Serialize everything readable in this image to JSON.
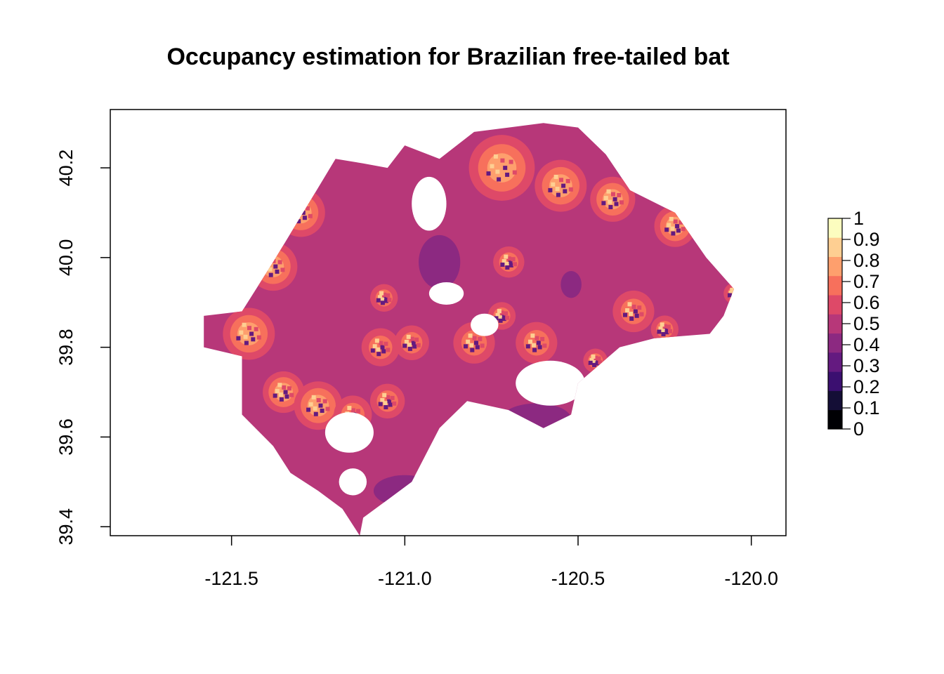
{
  "chart_data": {
    "type": "heatmap",
    "title": "Occupancy estimation for Brazilian free-tailed bat",
    "xlabel": "",
    "ylabel": "",
    "xlim": [
      -121.85,
      -119.9
    ],
    "ylim": [
      39.38,
      40.33
    ],
    "x_ticks": [
      {
        "value": -121.5,
        "label": "-121.5"
      },
      {
        "value": -121.0,
        "label": "-121.0"
      },
      {
        "value": -120.5,
        "label": "-120.5"
      },
      {
        "value": -120.0,
        "label": "-120.0"
      }
    ],
    "y_ticks": [
      {
        "value": 39.4,
        "label": "39.4"
      },
      {
        "value": 39.6,
        "label": "39.6"
      },
      {
        "value": 39.8,
        "label": "39.8"
      },
      {
        "value": 40.0,
        "label": "40.0"
      },
      {
        "value": 40.2,
        "label": "40.2"
      }
    ],
    "legend": {
      "placement": "right",
      "breaks": [
        0,
        0.1,
        0.2,
        0.3,
        0.4,
        0.5,
        0.6,
        0.7,
        0.8,
        0.9,
        1
      ],
      "labels": [
        "0",
        "0.1",
        "0.2",
        "0.3",
        "0.4",
        "0.5",
        "0.6",
        "0.7",
        "0.8",
        "0.9",
        "1"
      ],
      "colors": [
        "#000004",
        "#140E36",
        "#3B0F70",
        "#641A80",
        "#8C2981",
        "#B73779",
        "#DE4968",
        "#F7705C",
        "#FE9F6D",
        "#FECF92",
        "#FCFDBF"
      ]
    },
    "region": {
      "base_value": 0.55,
      "outline": [
        [
          -121.58,
          39.87
        ],
        [
          -121.47,
          39.88
        ],
        [
          -121.38,
          39.99
        ],
        [
          -121.27,
          40.13
        ],
        [
          -121.2,
          40.22
        ],
        [
          -121.12,
          40.21
        ],
        [
          -121.05,
          40.2
        ],
        [
          -121.0,
          40.25
        ],
        [
          -120.9,
          40.22
        ],
        [
          -120.8,
          40.28
        ],
        [
          -120.7,
          40.29
        ],
        [
          -120.6,
          40.3
        ],
        [
          -120.5,
          40.29
        ],
        [
          -120.42,
          40.23
        ],
        [
          -120.35,
          40.15
        ],
        [
          -120.22,
          40.1
        ],
        [
          -120.13,
          40.0
        ],
        [
          -120.05,
          39.93
        ],
        [
          -120.08,
          39.87
        ],
        [
          -120.12,
          39.83
        ],
        [
          -120.28,
          39.82
        ],
        [
          -120.38,
          39.8
        ],
        [
          -120.5,
          39.72
        ],
        [
          -120.52,
          39.65
        ],
        [
          -120.6,
          39.62
        ],
        [
          -120.7,
          39.66
        ],
        [
          -120.82,
          39.68
        ],
        [
          -120.9,
          39.62
        ],
        [
          -120.98,
          39.5
        ],
        [
          -121.05,
          39.46
        ],
        [
          -121.12,
          39.42
        ],
        [
          -121.13,
          39.38
        ],
        [
          -121.18,
          39.44
        ],
        [
          -121.25,
          39.48
        ],
        [
          -121.33,
          39.52
        ],
        [
          -121.38,
          39.58
        ],
        [
          -121.47,
          39.65
        ],
        [
          -121.47,
          39.78
        ],
        [
          -121.58,
          39.8
        ]
      ],
      "low_patches": [
        {
          "lon": -120.9,
          "lat": 39.99,
          "rx": 0.06,
          "ry": 0.06,
          "value": 0.45
        },
        {
          "lon": -121.0,
          "lat": 39.48,
          "rx": 0.09,
          "ry": 0.035,
          "value": 0.45
        },
        {
          "lon": -120.62,
          "lat": 39.64,
          "rx": 0.1,
          "ry": 0.035,
          "value": 0.45
        },
        {
          "lon": -120.52,
          "lat": 39.94,
          "rx": 0.03,
          "ry": 0.03,
          "value": 0.45
        }
      ],
      "high_spots": [
        {
          "lon": -120.72,
          "lat": 40.2,
          "radius": 0.095,
          "peak": 0.9
        },
        {
          "lon": -120.55,
          "lat": 40.16,
          "radius": 0.075,
          "peak": 0.9
        },
        {
          "lon": -120.4,
          "lat": 40.13,
          "radius": 0.065,
          "peak": 0.85
        },
        {
          "lon": -120.22,
          "lat": 40.07,
          "radius": 0.06,
          "peak": 0.85
        },
        {
          "lon": -121.3,
          "lat": 40.1,
          "radius": 0.07,
          "peak": 0.85
        },
        {
          "lon": -121.38,
          "lat": 39.98,
          "radius": 0.07,
          "peak": 0.85
        },
        {
          "lon": -121.45,
          "lat": 39.83,
          "radius": 0.075,
          "peak": 0.85
        },
        {
          "lon": -121.35,
          "lat": 39.7,
          "radius": 0.06,
          "peak": 0.85
        },
        {
          "lon": -121.25,
          "lat": 39.67,
          "radius": 0.07,
          "peak": 0.85
        },
        {
          "lon": -121.15,
          "lat": 39.65,
          "radius": 0.055,
          "peak": 0.8
        },
        {
          "lon": -121.07,
          "lat": 39.8,
          "radius": 0.055,
          "peak": 0.8
        },
        {
          "lon": -120.98,
          "lat": 39.81,
          "radius": 0.05,
          "peak": 0.8
        },
        {
          "lon": -121.06,
          "lat": 39.91,
          "radius": 0.04,
          "peak": 0.8
        },
        {
          "lon": -120.7,
          "lat": 39.99,
          "radius": 0.045,
          "peak": 0.8
        },
        {
          "lon": -120.72,
          "lat": 39.87,
          "radius": 0.04,
          "peak": 0.8
        },
        {
          "lon": -120.8,
          "lat": 39.81,
          "radius": 0.06,
          "peak": 0.8
        },
        {
          "lon": -120.62,
          "lat": 39.81,
          "radius": 0.06,
          "peak": 0.8
        },
        {
          "lon": -120.34,
          "lat": 39.88,
          "radius": 0.06,
          "peak": 0.8
        },
        {
          "lon": -120.25,
          "lat": 39.84,
          "radius": 0.04,
          "peak": 0.75
        },
        {
          "lon": -120.05,
          "lat": 39.92,
          "radius": 0.03,
          "peak": 0.75
        },
        {
          "lon": -121.05,
          "lat": 39.68,
          "radius": 0.05,
          "peak": 0.8
        },
        {
          "lon": -120.45,
          "lat": 39.77,
          "radius": 0.035,
          "peak": 0.75
        }
      ],
      "gaps": [
        {
          "lon": -120.93,
          "lat": 40.12,
          "rx": 0.05,
          "ry": 0.06
        },
        {
          "lon": -120.88,
          "lat": 39.92,
          "rx": 0.05,
          "ry": 0.025
        },
        {
          "lon": -120.77,
          "lat": 39.85,
          "rx": 0.04,
          "ry": 0.025
        },
        {
          "lon": -120.58,
          "lat": 39.72,
          "rx": 0.1,
          "ry": 0.05
        },
        {
          "lon": -121.16,
          "lat": 39.61,
          "rx": 0.07,
          "ry": 0.045
        },
        {
          "lon": -121.15,
          "lat": 39.5,
          "rx": 0.04,
          "ry": 0.03
        },
        {
          "lon": -121.3,
          "lat": 40.16,
          "rx": 0.025,
          "ry": 0.02
        }
      ]
    }
  }
}
